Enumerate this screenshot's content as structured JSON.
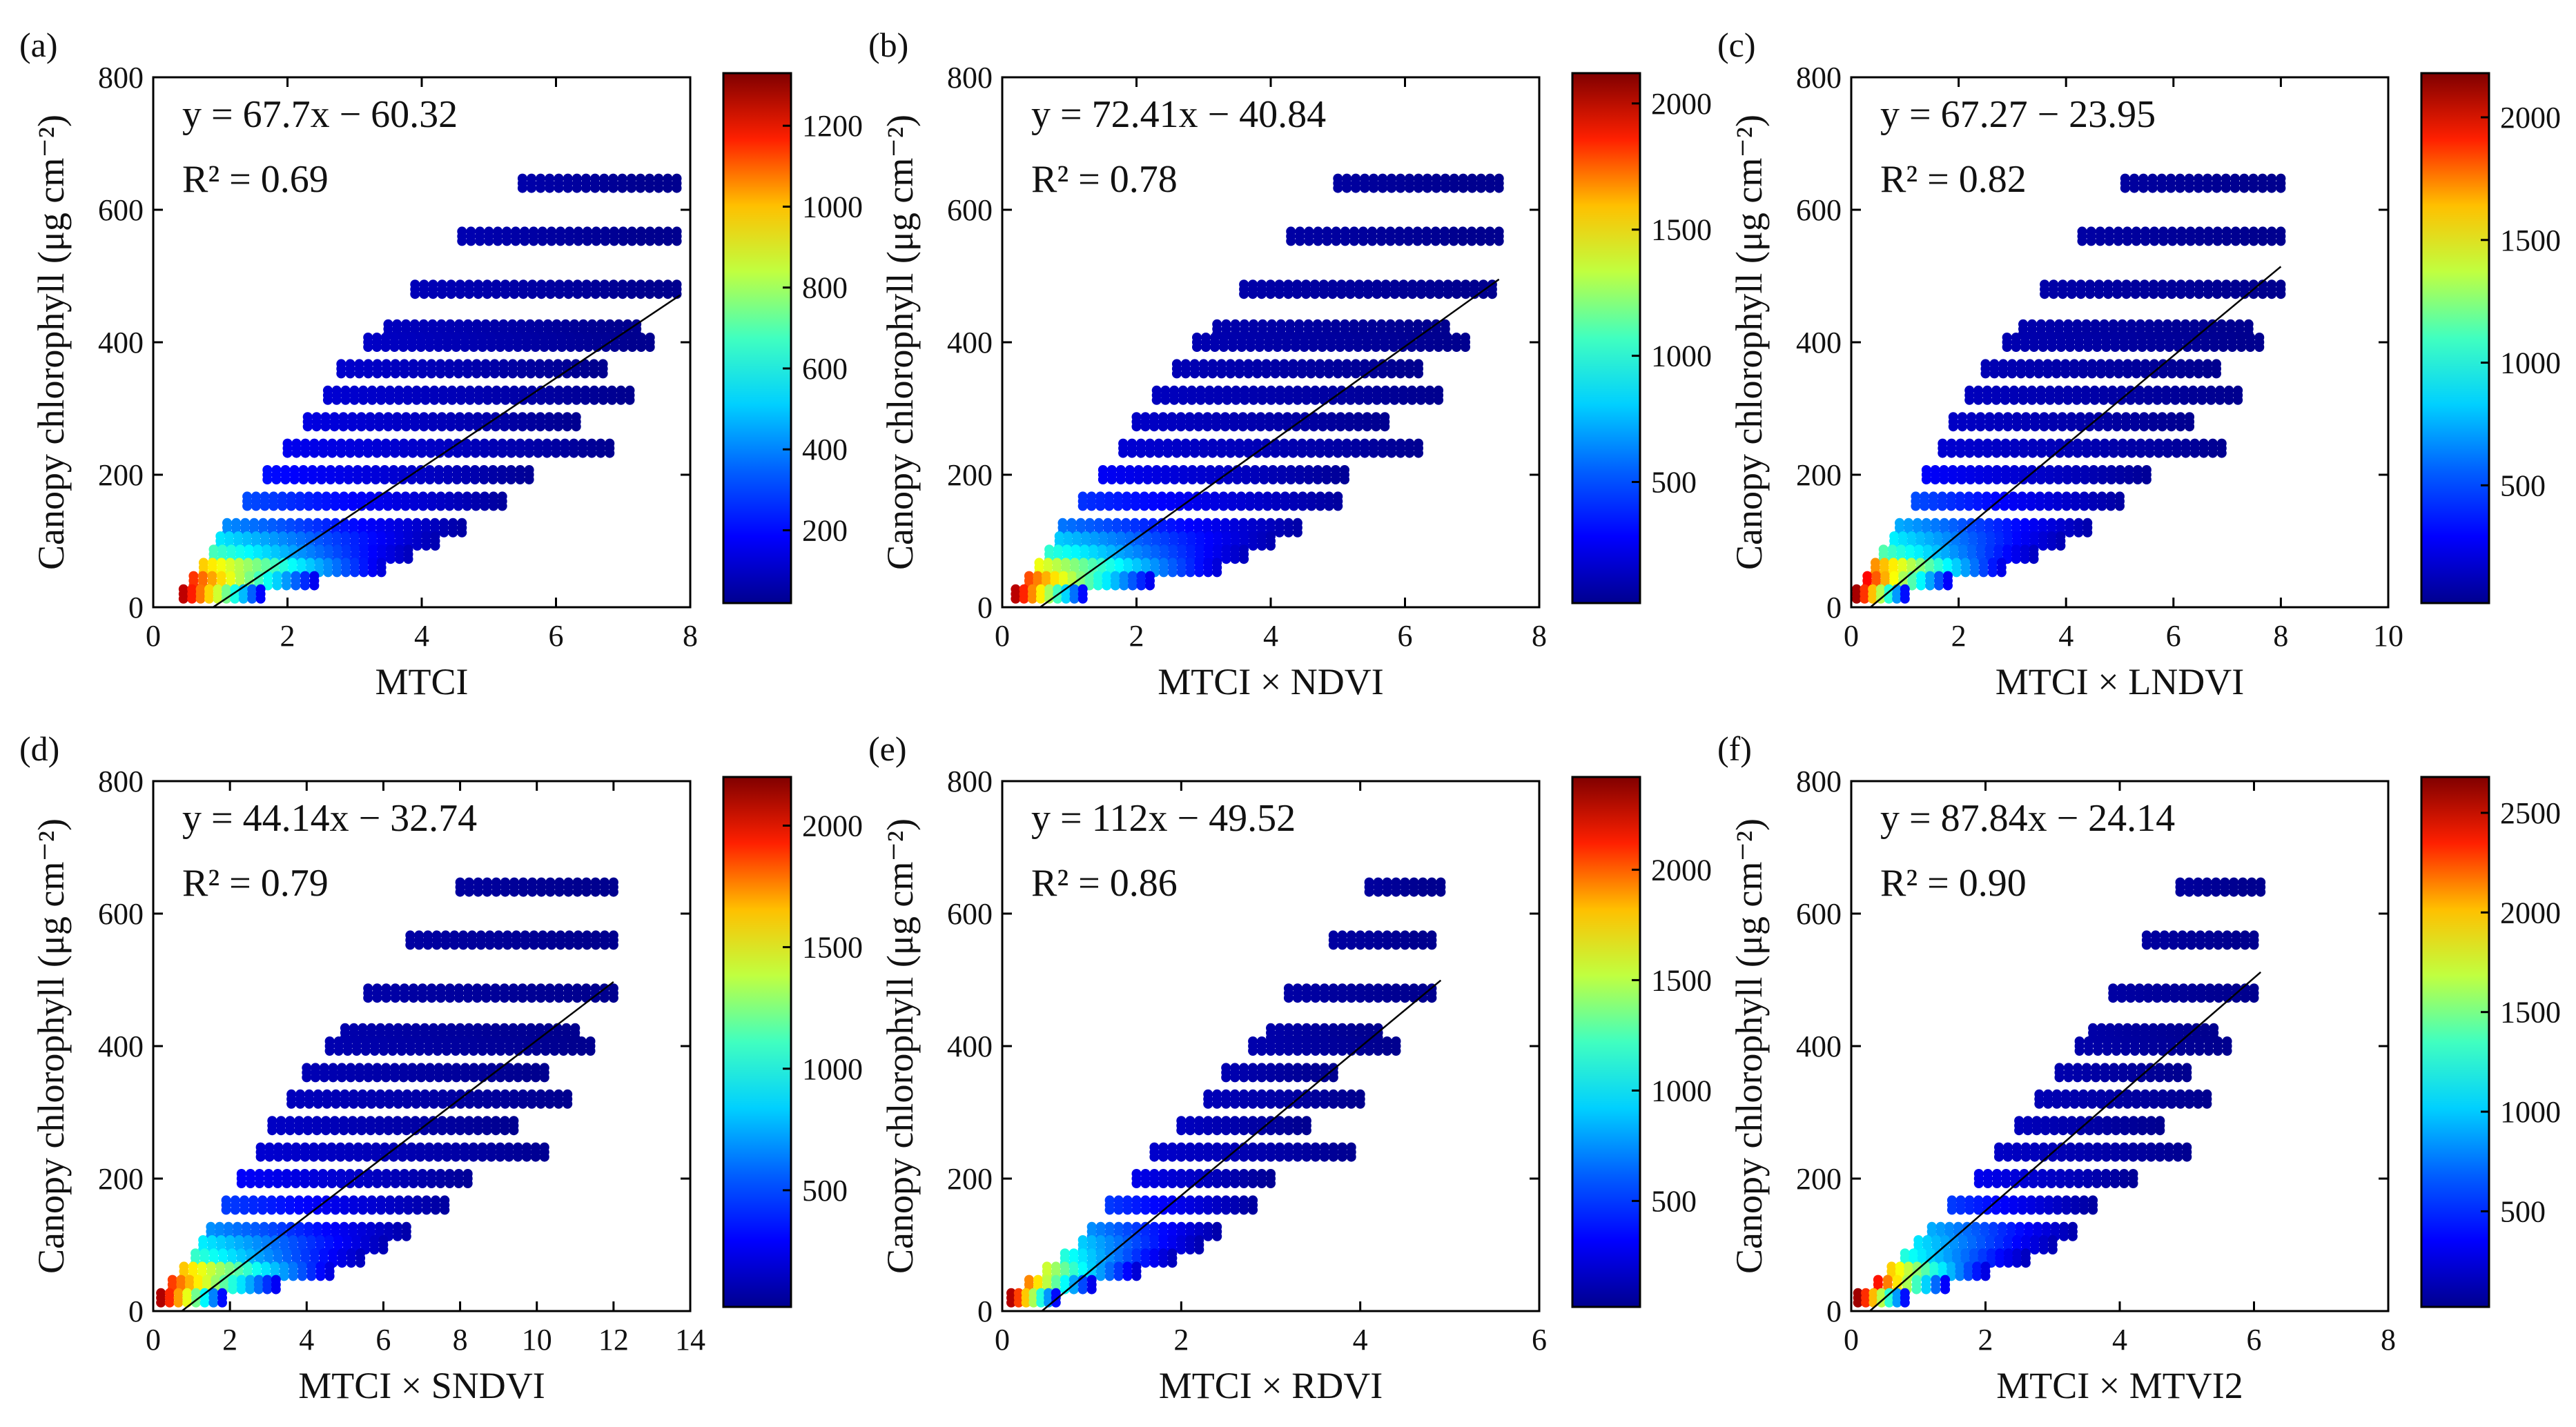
{
  "figure": {
    "panels_note": "Six density-coloured scatter plots of canopy chlorophyll versus MTCI-based indices",
    "colormap": [
      "#00008f",
      "#0000ff",
      "#0080ff",
      "#00ffff",
      "#80ff80",
      "#ffff00",
      "#ff8000",
      "#ff0000",
      "#800000"
    ],
    "line_color": "#000000"
  },
  "chart_data": [
    {
      "type": "scatter",
      "panel_label": "(a)",
      "xlabel": "MTCI",
      "ylabel": "Canopy chlorophyll (μg cm⁻²)",
      "xlim": [
        0,
        8
      ],
      "ylim": [
        0,
        800
      ],
      "xticks": [
        0,
        2,
        4,
        6,
        8
      ],
      "yticks": [
        0,
        200,
        400,
        600,
        800
      ],
      "equation": "y = 67.7x − 60.32",
      "r2_text": "R² = 0.69",
      "fit": {
        "slope": 67.7,
        "intercept": -60.32,
        "x_range": [
          0.89,
          7.85
        ]
      },
      "colorbar": {
        "min": 20,
        "max": 1330,
        "ticks": [
          200,
          400,
          600,
          800,
          1000,
          1200
        ]
      },
      "points": [
        {
          "y": 640,
          "x_range": [
            5.5,
            7.8
          ],
          "density": 60
        },
        {
          "y": 560,
          "x_range": [
            4.6,
            7.8
          ],
          "density": 70
        },
        {
          "y": 480,
          "x_range": [
            3.9,
            7.8
          ],
          "density": 80
        },
        {
          "y": 420,
          "x_range": [
            3.5,
            7.2
          ],
          "density": 90
        },
        {
          "y": 400,
          "x_range": [
            3.2,
            7.4
          ],
          "density": 100
        },
        {
          "y": 360,
          "x_range": [
            2.8,
            6.7
          ],
          "density": 110
        },
        {
          "y": 320,
          "x_range": [
            2.6,
            7.1
          ],
          "density": 120
        },
        {
          "y": 280,
          "x_range": [
            2.3,
            6.3
          ],
          "density": 140
        },
        {
          "y": 240,
          "x_range": [
            2.0,
            6.8
          ],
          "density": 160
        },
        {
          "y": 200,
          "x_range": [
            1.7,
            5.6
          ],
          "density": 200
        },
        {
          "y": 160,
          "x_range": [
            1.4,
            5.2
          ],
          "density": 280
        },
        {
          "y": 120,
          "x_range": [
            1.1,
            4.6
          ],
          "density": 360
        },
        {
          "y": 100,
          "x_range": [
            1.0,
            4.2
          ],
          "density": 480
        },
        {
          "y": 80,
          "x_range": [
            0.9,
            3.8
          ],
          "density": 600
        },
        {
          "y": 60,
          "x_range": [
            0.75,
            3.4
          ],
          "density": 900
        },
        {
          "y": 40,
          "x_range": [
            0.6,
            2.4
          ],
          "density": 1100
        },
        {
          "y": 20,
          "x_range": [
            0.45,
            1.6
          ],
          "density": 1250
        }
      ]
    },
    {
      "type": "scatter",
      "panel_label": "(b)",
      "xlabel": "MTCI × NDVI",
      "ylabel": "Canopy chlorophyll (μg cm⁻²)",
      "xlim": [
        0,
        8
      ],
      "ylim": [
        0,
        800
      ],
      "xticks": [
        0,
        2,
        4,
        6,
        8
      ],
      "yticks": [
        0,
        200,
        400,
        600,
        800
      ],
      "equation": "y = 72.41x − 40.84",
      "r2_text": "R² = 0.78",
      "fit": {
        "slope": 72.41,
        "intercept": -40.84,
        "x_range": [
          0.56,
          7.4
        ]
      },
      "colorbar": {
        "min": 20,
        "max": 2120,
        "ticks": [
          500,
          1000,
          1500,
          2000
        ]
      },
      "points": [
        {
          "y": 640,
          "x_range": [
            5.0,
            7.4
          ],
          "density": 60
        },
        {
          "y": 560,
          "x_range": [
            4.3,
            7.4
          ],
          "density": 70
        },
        {
          "y": 480,
          "x_range": [
            3.6,
            7.3
          ],
          "density": 80
        },
        {
          "y": 420,
          "x_range": [
            3.2,
            6.6
          ],
          "density": 90
        },
        {
          "y": 400,
          "x_range": [
            2.9,
            6.9
          ],
          "density": 100
        },
        {
          "y": 360,
          "x_range": [
            2.6,
            6.2
          ],
          "density": 110
        },
        {
          "y": 320,
          "x_range": [
            2.3,
            6.5
          ],
          "density": 130
        },
        {
          "y": 280,
          "x_range": [
            2.0,
            5.7
          ],
          "density": 150
        },
        {
          "y": 240,
          "x_range": [
            1.8,
            6.2
          ],
          "density": 180
        },
        {
          "y": 200,
          "x_range": [
            1.5,
            5.1
          ],
          "density": 260
        },
        {
          "y": 160,
          "x_range": [
            1.2,
            5.0
          ],
          "density": 380
        },
        {
          "y": 120,
          "x_range": [
            0.9,
            4.4
          ],
          "density": 520
        },
        {
          "y": 100,
          "x_range": [
            0.85,
            4.0
          ],
          "density": 700
        },
        {
          "y": 80,
          "x_range": [
            0.7,
            3.6
          ],
          "density": 900
        },
        {
          "y": 60,
          "x_range": [
            0.55,
            3.2
          ],
          "density": 1300
        },
        {
          "y": 40,
          "x_range": [
            0.4,
            2.2
          ],
          "density": 1700
        },
        {
          "y": 20,
          "x_range": [
            0.2,
            1.2
          ],
          "density": 2000
        }
      ]
    },
    {
      "type": "scatter",
      "panel_label": "(c)",
      "xlabel": "MTCI × LNDVI",
      "ylabel": "Canopy chlorophyll (μg cm⁻²)",
      "xlim": [
        0,
        10
      ],
      "ylim": [
        0,
        800
      ],
      "xticks": [
        0,
        2,
        4,
        6,
        8,
        10
      ],
      "yticks": [
        0,
        200,
        400,
        600,
        800
      ],
      "equation": "y = 67.27 − 23.95",
      "r2_text": "R² = 0.82",
      "fit": {
        "slope": 67.27,
        "intercept": -23.95,
        "x_range": [
          0.36,
          8.0
        ]
      },
      "colorbar": {
        "min": 20,
        "max": 2180,
        "ticks": [
          500,
          1000,
          1500,
          2000
        ]
      },
      "points": [
        {
          "y": 640,
          "x_range": [
            5.1,
            8.0
          ],
          "density": 60
        },
        {
          "y": 560,
          "x_range": [
            4.3,
            8.0
          ],
          "density": 70
        },
        {
          "y": 480,
          "x_range": [
            3.6,
            8.0
          ],
          "density": 80
        },
        {
          "y": 420,
          "x_range": [
            3.2,
            7.4
          ],
          "density": 90
        },
        {
          "y": 400,
          "x_range": [
            2.9,
            7.6
          ],
          "density": 100
        },
        {
          "y": 360,
          "x_range": [
            2.5,
            6.8
          ],
          "density": 110
        },
        {
          "y": 320,
          "x_range": [
            2.2,
            7.2
          ],
          "density": 130
        },
        {
          "y": 280,
          "x_range": [
            1.9,
            6.3
          ],
          "density": 150
        },
        {
          "y": 240,
          "x_range": [
            1.7,
            6.9
          ],
          "density": 180
        },
        {
          "y": 200,
          "x_range": [
            1.4,
            5.5
          ],
          "density": 280
        },
        {
          "y": 160,
          "x_range": [
            1.2,
            5.0
          ],
          "density": 450
        },
        {
          "y": 120,
          "x_range": [
            0.9,
            4.4
          ],
          "density": 650
        },
        {
          "y": 100,
          "x_range": [
            0.8,
            3.9
          ],
          "density": 800
        },
        {
          "y": 80,
          "x_range": [
            0.6,
            3.4
          ],
          "density": 1000
        },
        {
          "y": 60,
          "x_range": [
            0.45,
            2.8
          ],
          "density": 1600
        },
        {
          "y": 40,
          "x_range": [
            0.3,
            1.8
          ],
          "density": 1900
        },
        {
          "y": 20,
          "x_range": [
            0.1,
            1.0
          ],
          "density": 2100
        }
      ]
    },
    {
      "type": "scatter",
      "panel_label": "(d)",
      "xlabel": "MTCI × SNDVI",
      "ylabel": "Canopy chlorophyll (μg cm⁻²)",
      "xlim": [
        0,
        14
      ],
      "ylim": [
        0,
        800
      ],
      "xticks": [
        0,
        2,
        4,
        6,
        8,
        10,
        12,
        14
      ],
      "yticks": [
        0,
        200,
        400,
        600,
        800
      ],
      "equation": "y = 44.14x − 32.74",
      "r2_text": "R² = 0.79",
      "fit": {
        "slope": 44.14,
        "intercept": -32.74,
        "x_range": [
          0.74,
          12.0
        ]
      },
      "colorbar": {
        "min": 20,
        "max": 2200,
        "ticks": [
          500,
          1000,
          1500,
          2000
        ]
      },
      "points": [
        {
          "y": 640,
          "x_range": [
            8.0,
            12.0
          ],
          "density": 60
        },
        {
          "y": 560,
          "x_range": [
            6.7,
            12.0
          ],
          "density": 70
        },
        {
          "y": 480,
          "x_range": [
            5.6,
            12.0
          ],
          "density": 80
        },
        {
          "y": 420,
          "x_range": [
            5.0,
            11.0
          ],
          "density": 90
        },
        {
          "y": 400,
          "x_range": [
            4.6,
            11.4
          ],
          "density": 100
        },
        {
          "y": 360,
          "x_range": [
            4.0,
            10.2
          ],
          "density": 110
        },
        {
          "y": 320,
          "x_range": [
            3.6,
            10.8
          ],
          "density": 130
        },
        {
          "y": 280,
          "x_range": [
            3.1,
            9.4
          ],
          "density": 150
        },
        {
          "y": 240,
          "x_range": [
            2.8,
            10.2
          ],
          "density": 180
        },
        {
          "y": 200,
          "x_range": [
            2.3,
            8.2
          ],
          "density": 280
        },
        {
          "y": 160,
          "x_range": [
            1.9,
            7.6
          ],
          "density": 420
        },
        {
          "y": 120,
          "x_range": [
            1.5,
            6.6
          ],
          "density": 600
        },
        {
          "y": 100,
          "x_range": [
            1.3,
            6.0
          ],
          "density": 800
        },
        {
          "y": 80,
          "x_range": [
            1.1,
            5.4
          ],
          "density": 950
        },
        {
          "y": 60,
          "x_range": [
            0.8,
            4.6
          ],
          "density": 1500
        },
        {
          "y": 40,
          "x_range": [
            0.5,
            3.2
          ],
          "density": 1800
        },
        {
          "y": 20,
          "x_range": [
            0.2,
            1.8
          ],
          "density": 2100
        }
      ]
    },
    {
      "type": "scatter",
      "panel_label": "(e)",
      "xlabel": "MTCI × RDVI",
      "ylabel": "Canopy chlorophyll (μg cm⁻²)",
      "xlim": [
        0,
        6
      ],
      "ylim": [
        0,
        800
      ],
      "xticks": [
        0,
        2,
        4,
        6
      ],
      "yticks": [
        0,
        200,
        400,
        600,
        800
      ],
      "equation": "y = 112x − 49.52",
      "r2_text": "R² = 0.86",
      "fit": {
        "slope": 112,
        "intercept": -49.52,
        "x_range": [
          0.44,
          4.9
        ]
      },
      "colorbar": {
        "min": 20,
        "max": 2420,
        "ticks": [
          500,
          1000,
          1500,
          2000
        ]
      },
      "points": [
        {
          "y": 640,
          "x_range": [
            4.1,
            4.9
          ],
          "density": 60
        },
        {
          "y": 560,
          "x_range": [
            3.7,
            4.8
          ],
          "density": 70
        },
        {
          "y": 480,
          "x_range": [
            3.2,
            4.8
          ],
          "density": 80
        },
        {
          "y": 420,
          "x_range": [
            3.0,
            4.2
          ],
          "density": 90
        },
        {
          "y": 400,
          "x_range": [
            2.8,
            4.4
          ],
          "density": 100
        },
        {
          "y": 360,
          "x_range": [
            2.5,
            3.7
          ],
          "density": 110
        },
        {
          "y": 320,
          "x_range": [
            2.3,
            4.0
          ],
          "density": 130
        },
        {
          "y": 280,
          "x_range": [
            2.0,
            3.4
          ],
          "density": 150
        },
        {
          "y": 240,
          "x_range": [
            1.7,
            3.9
          ],
          "density": 180
        },
        {
          "y": 200,
          "x_range": [
            1.5,
            3.0
          ],
          "density": 260
        },
        {
          "y": 160,
          "x_range": [
            1.2,
            2.8
          ],
          "density": 450
        },
        {
          "y": 120,
          "x_range": [
            1.0,
            2.4
          ],
          "density": 650
        },
        {
          "y": 100,
          "x_range": [
            0.9,
            2.2
          ],
          "density": 800
        },
        {
          "y": 80,
          "x_range": [
            0.7,
            1.9
          ],
          "density": 1000
        },
        {
          "y": 60,
          "x_range": [
            0.5,
            1.5
          ],
          "density": 1400
        },
        {
          "y": 40,
          "x_range": [
            0.3,
            1.0
          ],
          "density": 1800
        },
        {
          "y": 20,
          "x_range": [
            0.1,
            0.6
          ],
          "density": 2300
        }
      ]
    },
    {
      "type": "scatter",
      "panel_label": "(f)",
      "xlabel": "MTCI × MTVI2",
      "ylabel": "Canopy chlorophyll (μg cm⁻²)",
      "xlim": [
        0,
        8
      ],
      "ylim": [
        0,
        800
      ],
      "xticks": [
        0,
        2,
        4,
        6,
        8
      ],
      "yticks": [
        0,
        200,
        400,
        600,
        800
      ],
      "equation": "y = 87.84x − 24.14",
      "r2_text": "R² = 0.90",
      "fit": {
        "slope": 87.84,
        "intercept": -24.14,
        "x_range": [
          0.27,
          6.1
        ]
      },
      "colorbar": {
        "min": 20,
        "max": 2680,
        "ticks": [
          500,
          1000,
          1500,
          2000,
          2500
        ]
      },
      "points": [
        {
          "y": 640,
          "x_range": [
            4.9,
            6.1
          ],
          "density": 60
        },
        {
          "y": 560,
          "x_range": [
            4.4,
            6.0
          ],
          "density": 70
        },
        {
          "y": 480,
          "x_range": [
            3.9,
            6.0
          ],
          "density": 80
        },
        {
          "y": 420,
          "x_range": [
            3.6,
            5.4
          ],
          "density": 90
        },
        {
          "y": 400,
          "x_range": [
            3.4,
            5.6
          ],
          "density": 100
        },
        {
          "y": 360,
          "x_range": [
            3.1,
            5.0
          ],
          "density": 110
        },
        {
          "y": 320,
          "x_range": [
            2.8,
            5.3
          ],
          "density": 130
        },
        {
          "y": 280,
          "x_range": [
            2.5,
            4.6
          ],
          "density": 150
        },
        {
          "y": 240,
          "x_range": [
            2.2,
            5.0
          ],
          "density": 180
        },
        {
          "y": 200,
          "x_range": [
            1.9,
            4.2
          ],
          "density": 300
        },
        {
          "y": 160,
          "x_range": [
            1.5,
            3.6
          ],
          "density": 500
        },
        {
          "y": 120,
          "x_range": [
            1.2,
            3.3
          ],
          "density": 800
        },
        {
          "y": 100,
          "x_range": [
            1.0,
            3.0
          ],
          "density": 950
        },
        {
          "y": 80,
          "x_range": [
            0.8,
            2.6
          ],
          "density": 1100
        },
        {
          "y": 60,
          "x_range": [
            0.6,
            2.0
          ],
          "density": 1800
        },
        {
          "y": 40,
          "x_range": [
            0.4,
            1.4
          ],
          "density": 2300
        },
        {
          "y": 20,
          "x_range": [
            0.1,
            0.8
          ],
          "density": 2600
        }
      ]
    }
  ]
}
